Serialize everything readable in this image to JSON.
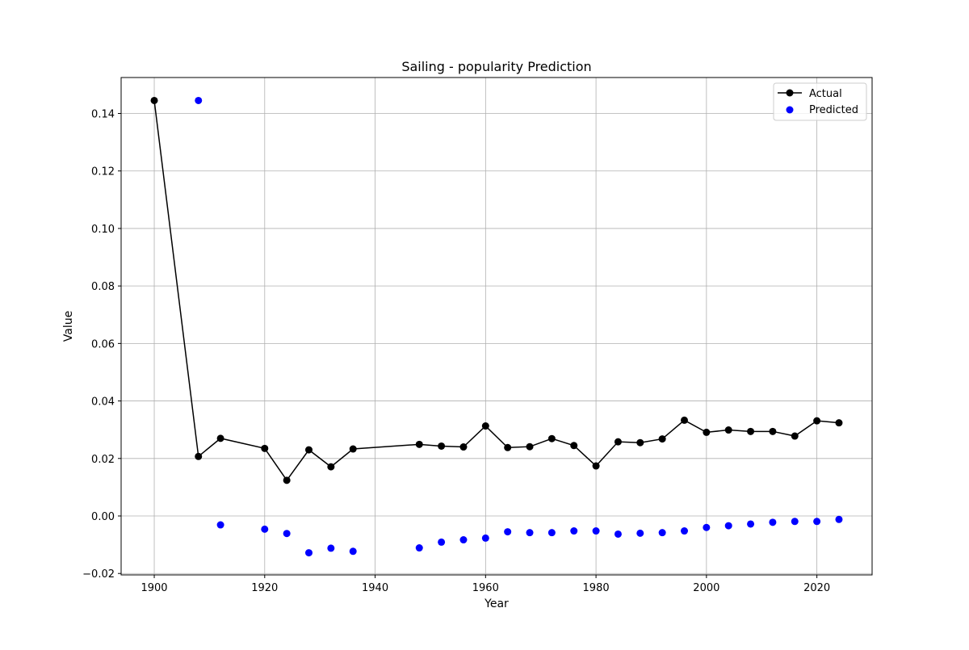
{
  "chart_data": {
    "type": "line",
    "title": "Sailing - popularity Prediction",
    "xlabel": "Year",
    "ylabel": "Value",
    "xlim": [
      1894,
      2030
    ],
    "ylim": [
      -0.0205,
      0.1525
    ],
    "xticks": [
      1900,
      1920,
      1940,
      1960,
      1980,
      2000,
      2020
    ],
    "yticks": [
      -0.02,
      0.0,
      0.02,
      0.04,
      0.06,
      0.08,
      0.1,
      0.12,
      0.14
    ],
    "ytick_labels": [
      "−0.02",
      "0.00",
      "0.02",
      "0.04",
      "0.06",
      "0.08",
      "0.10",
      "0.12",
      "0.14"
    ],
    "grid": true,
    "legend_position": "top-right",
    "series": [
      {
        "name": "Actual",
        "style": "line-marker",
        "color": "#000000",
        "x": [
          1900,
          1908,
          1912,
          1920,
          1924,
          1928,
          1932,
          1936,
          1948,
          1952,
          1956,
          1960,
          1964,
          1968,
          1972,
          1976,
          1980,
          1984,
          1988,
          1992,
          1996,
          2000,
          2004,
          2008,
          2012,
          2016,
          2020,
          2024
        ],
        "y": [
          0.1445,
          0.0207,
          0.027,
          0.0235,
          0.0124,
          0.023,
          0.0171,
          0.0233,
          0.0249,
          0.0243,
          0.024,
          0.0313,
          0.0238,
          0.0241,
          0.0269,
          0.0245,
          0.0174,
          0.0258,
          0.0255,
          0.0268,
          0.0333,
          0.0291,
          0.0299,
          0.0294,
          0.0294,
          0.0278,
          0.0331,
          0.0324
        ]
      },
      {
        "name": "Predicted",
        "style": "scatter",
        "color": "#0000ff",
        "x": [
          1908,
          1912,
          1920,
          1924,
          1928,
          1932,
          1936,
          1948,
          1952,
          1956,
          1960,
          1964,
          1968,
          1972,
          1976,
          1980,
          1984,
          1988,
          1992,
          1996,
          2000,
          2004,
          2008,
          2012,
          2016,
          2020,
          2024
        ],
        "y": [
          0.1445,
          -0.0031,
          -0.0046,
          -0.0061,
          -0.0128,
          -0.0112,
          -0.0123,
          -0.0111,
          -0.0091,
          -0.0083,
          -0.0077,
          -0.0055,
          -0.0058,
          -0.0058,
          -0.0052,
          -0.0052,
          -0.0063,
          -0.006,
          -0.0058,
          -0.0052,
          -0.004,
          -0.0034,
          -0.0028,
          -0.0022,
          -0.0019,
          -0.0019,
          -0.0012
        ]
      }
    ]
  }
}
